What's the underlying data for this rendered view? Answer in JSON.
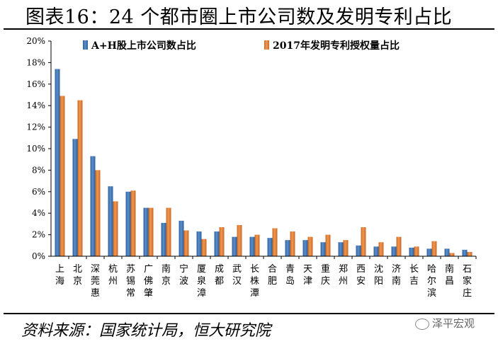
{
  "header": {
    "title": "图表16：24 个都市圈上市公司数及发明专利占比"
  },
  "footer": {
    "source": "资料来源：国家统计局，恒大研究院",
    "watermark": "泽平宏观"
  },
  "colors": {
    "series1": "#5a8fcc",
    "series2": "#f3964f",
    "series1_dark": "#2e5f9a",
    "series2_dark": "#c76a27"
  },
  "chart_data": {
    "type": "bar",
    "categories": [
      "上海",
      "北京",
      "深莞惠",
      "杭州",
      "苏锡常",
      "广佛肇",
      "南京",
      "宁波",
      "厦泉漳",
      "成都",
      "武汉",
      "长株潭",
      "合肥",
      "青岛",
      "天津",
      "重庆",
      "郑州",
      "西安",
      "沈阳",
      "济南",
      "长吉",
      "哈尔滨",
      "南昌",
      "石家庄"
    ],
    "series": [
      {
        "name": "A+H股上市公司数占比",
        "values": [
          17.4,
          10.9,
          9.3,
          6.5,
          6.0,
          4.5,
          3.1,
          3.3,
          2.3,
          2.3,
          1.8,
          1.8,
          1.7,
          1.5,
          1.5,
          1.3,
          1.3,
          1.0,
          0.9,
          0.9,
          0.8,
          0.7,
          0.7,
          0.6
        ]
      },
      {
        "name": "2017年发明专利授权量占比",
        "values": [
          14.9,
          14.5,
          8.0,
          5.1,
          6.1,
          4.5,
          4.5,
          2.4,
          1.6,
          2.7,
          2.9,
          2.0,
          2.6,
          2.3,
          1.8,
          2.0,
          1.5,
          2.7,
          1.3,
          1.8,
          0.9,
          1.4,
          0.3,
          0.4
        ]
      }
    ],
    "yticks": [
      "0%",
      "2%",
      "4%",
      "6%",
      "8%",
      "10%",
      "12%",
      "14%",
      "16%",
      "18%",
      "20%"
    ],
    "ylim": [
      0,
      20
    ],
    "legend_position": "top"
  }
}
